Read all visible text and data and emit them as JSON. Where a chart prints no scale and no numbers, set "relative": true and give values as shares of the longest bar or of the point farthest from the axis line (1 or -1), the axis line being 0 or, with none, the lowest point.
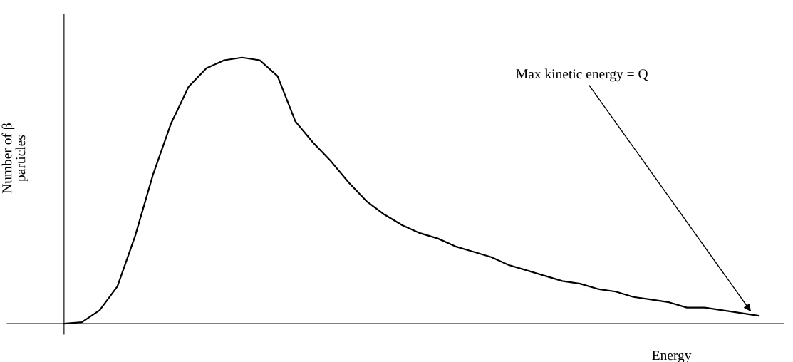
{
  "chart_data": {
    "type": "line",
    "relative": true,
    "xlabel": "Energy",
    "ylabel": "Number of β\nparticles",
    "categories": [
      null,
      null,
      null,
      null,
      null,
      null,
      null,
      null,
      null,
      null,
      null,
      null,
      null,
      null,
      null,
      null,
      null,
      null,
      null,
      null,
      null,
      null,
      null,
      null,
      null,
      null,
      null,
      null,
      null,
      null,
      null,
      null,
      null,
      null,
      null,
      null,
      null,
      null,
      null,
      null
    ],
    "series": [
      {
        "color": "#000000",
        "values": [
          0,
          0.005,
          0.05,
          0.14,
          0.33,
          0.56,
          0.75,
          0.89,
          0.96,
          0.99,
          1,
          0.99,
          0.93,
          0.76,
          0.68,
          0.61,
          0.53,
          0.46,
          0.41,
          0.37,
          0.34,
          0.32,
          0.29,
          0.27,
          0.25,
          0.22,
          0.2,
          0.18,
          0.16,
          0.15,
          0.13,
          0.12,
          0.1,
          0.09,
          0.08,
          0.06,
          0.06,
          0.05,
          0.04,
          0.03
        ]
      }
    ],
    "annotations": [
      "Max kinetic energy = Q"
    ],
    "marker": "none",
    "line_style": "solid",
    "grid": false,
    "legend": false
  }
}
